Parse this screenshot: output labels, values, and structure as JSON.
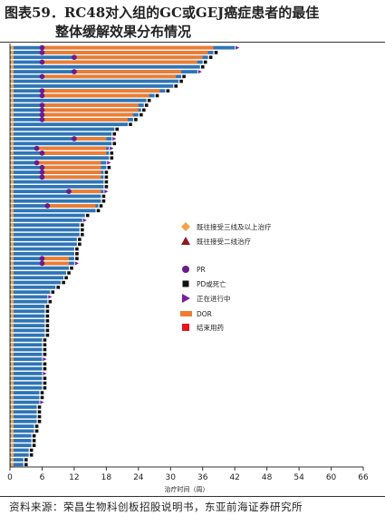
{
  "figure": {
    "title_line1": "图表59．RC48对入组的GC或GEJ癌症患者的最佳",
    "title_line2": "整体缓解效果分布情况",
    "source": "资料来源：荣昌生物科创板招股说明书，东亚前海证券研究所"
  },
  "colors": {
    "bar": "#2e75b6",
    "dor": "#ed7d31",
    "prior3": "#f4a24b",
    "prior2": "#8b1a1a",
    "pr": "#6a1b8c",
    "pd": "#111111",
    "ongoing": "#7b1fa2",
    "end": "#e8141e"
  },
  "chart_data": {
    "type": "bar",
    "orientation": "horizontal",
    "xlabel": "治疗时间（周）",
    "xlim": [
      0,
      66
    ],
    "xticks": [
      0,
      6,
      12,
      18,
      24,
      30,
      36,
      42,
      48,
      54,
      60,
      66
    ],
    "legend": [
      {
        "key": "prior3",
        "label": "既往接受三线及以上治疗"
      },
      {
        "key": "prior2",
        "label": "既往接受二线治疗"
      },
      {
        "key": "pr",
        "label": "PR"
      },
      {
        "key": "pd",
        "label": "PD或死亡"
      },
      {
        "key": "ongoing",
        "label": "正在进行中"
      },
      {
        "key": "dor",
        "label": "DOR"
      },
      {
        "key": "end",
        "label": "结束用药"
      }
    ],
    "patients": [
      {
        "duration": 42.0,
        "pr": 6,
        "dor": [
          6,
          38
        ],
        "end": "ongoing",
        "prior": 3
      },
      {
        "duration": 38.0,
        "pr": 6,
        "dor": [
          6,
          37
        ],
        "end": "pd",
        "prior": 3
      },
      {
        "duration": 37.0,
        "pr": 12,
        "dor": [
          12,
          36
        ],
        "end": "pd",
        "prior": 3
      },
      {
        "duration": 36.0,
        "pr": 6,
        "dor": [
          6,
          35
        ],
        "end": "pd",
        "prior": 3
      },
      {
        "duration": 35.5,
        "pr": null,
        "dor": null,
        "end": "pd",
        "prior": 3
      },
      {
        "duration": 35.0,
        "pr": 12,
        "dor": [
          12,
          32
        ],
        "end": "ongoing",
        "prior": 3
      },
      {
        "duration": 32.0,
        "pr": 6,
        "dor": [
          6,
          31
        ],
        "end": "pd",
        "prior": 3
      },
      {
        "duration": 31.5,
        "pr": null,
        "dor": null,
        "end": "pd",
        "prior": 3
      },
      {
        "duration": 30.5,
        "pr": null,
        "dor": null,
        "end": "pd",
        "prior": 3
      },
      {
        "duration": 29.0,
        "pr": 6,
        "dor": [
          6,
          28
        ],
        "end": "pd",
        "prior": 3
      },
      {
        "duration": 27.0,
        "pr": 6,
        "dor": [
          6,
          26
        ],
        "end": "pd",
        "prior": 3
      },
      {
        "duration": 25.5,
        "pr": null,
        "dor": null,
        "end": "pd",
        "prior": 3
      },
      {
        "duration": 25.0,
        "pr": 6,
        "dor": [
          6,
          24
        ],
        "end": "pd",
        "prior": 3
      },
      {
        "duration": 24.5,
        "pr": 6,
        "dor": [
          6,
          24
        ],
        "end": "pd",
        "prior": 3
      },
      {
        "duration": 24.0,
        "pr": 6,
        "dor": [
          6,
          23
        ],
        "end": "pd",
        "prior": 3
      },
      {
        "duration": 23.0,
        "pr": 6,
        "dor": [
          6,
          22
        ],
        "end": "pd",
        "prior": 3
      },
      {
        "duration": 22.0,
        "pr": null,
        "dor": null,
        "end": "pd",
        "prior": 3
      },
      {
        "duration": 19.5,
        "pr": null,
        "dor": null,
        "end": "pd",
        "prior": 3
      },
      {
        "duration": 19.0,
        "pr": null,
        "dor": null,
        "end": "pd",
        "prior": 3
      },
      {
        "duration": 19.0,
        "pr": 12,
        "dor": [
          12,
          18
        ],
        "end": "ongoing",
        "prior": 3
      },
      {
        "duration": 19.0,
        "pr": null,
        "dor": null,
        "end": "pd",
        "prior": 3
      },
      {
        "duration": 18.5,
        "pr": 5,
        "dor": [
          5,
          18
        ],
        "end": "ongoing",
        "prior": 3
      },
      {
        "duration": 18.5,
        "pr": 6,
        "dor": [
          6,
          18
        ],
        "end": "pd",
        "prior": 3
      },
      {
        "duration": 18.5,
        "pr": null,
        "dor": null,
        "end": "pd",
        "prior": 3
      },
      {
        "duration": 18.0,
        "pr": 5,
        "dor": [
          5,
          17
        ],
        "end": "ongoing",
        "prior": 3
      },
      {
        "duration": 18.0,
        "pr": 6,
        "dor": [
          6,
          17
        ],
        "end": "pd",
        "prior": 3
      },
      {
        "duration": 17.5,
        "pr": 6,
        "dor": [
          6,
          17
        ],
        "end": "pd",
        "prior": 3
      },
      {
        "duration": 17.5,
        "pr": 6,
        "dor": [
          6,
          17
        ],
        "end": "pd",
        "prior": 3
      },
      {
        "duration": 17.5,
        "pr": null,
        "dor": null,
        "end": "pd",
        "prior": 3
      },
      {
        "duration": 17.5,
        "pr": null,
        "dor": null,
        "end": "pd",
        "prior": 3
      },
      {
        "duration": 17.5,
        "pr": 11,
        "dor": [
          11,
          17
        ],
        "end": "ongoing",
        "prior": 3
      },
      {
        "duration": 17.0,
        "pr": null,
        "dor": null,
        "end": "pd",
        "prior": 3
      },
      {
        "duration": 17.0,
        "pr": null,
        "dor": null,
        "end": "pd",
        "prior": 3
      },
      {
        "duration": 16.5,
        "pr": 7,
        "dor": [
          7,
          16
        ],
        "end": "pd",
        "prior": 3
      },
      {
        "duration": 16.0,
        "pr": null,
        "dor": null,
        "end": "pd",
        "prior": 3
      },
      {
        "duration": 14.0,
        "pr": null,
        "dor": null,
        "end": "pd",
        "prior": 3
      },
      {
        "duration": 13.5,
        "pr": null,
        "dor": null,
        "end": "ongoing",
        "prior": 3
      },
      {
        "duration": 13.0,
        "pr": null,
        "dor": null,
        "end": "pd",
        "prior": 3
      },
      {
        "duration": 13.0,
        "pr": null,
        "dor": null,
        "end": "pd",
        "prior": 3
      },
      {
        "duration": 13.0,
        "pr": null,
        "dor": null,
        "end": "pd",
        "prior": 3
      },
      {
        "duration": 12.5,
        "pr": null,
        "dor": null,
        "end": "pd",
        "prior": 3
      },
      {
        "duration": 12.5,
        "pr": null,
        "dor": null,
        "end": "pd",
        "prior": 3
      },
      {
        "duration": 12.0,
        "pr": null,
        "dor": null,
        "end": "pd",
        "prior": 3
      },
      {
        "duration": 12.0,
        "pr": null,
        "dor": null,
        "end": "pd",
        "prior": 3
      },
      {
        "duration": 12.0,
        "pr": 6,
        "dor": [
          6,
          11
        ],
        "end": "pd",
        "prior": 3
      },
      {
        "duration": 12.0,
        "pr": 6,
        "dor": [
          6,
          11
        ],
        "end": "ongoing",
        "prior": 3
      },
      {
        "duration": 11.0,
        "pr": null,
        "dor": null,
        "end": "pd",
        "prior": 3
      },
      {
        "duration": 10.5,
        "pr": null,
        "dor": null,
        "end": "pd",
        "prior": 3
      },
      {
        "duration": 10.0,
        "pr": null,
        "dor": null,
        "end": "pd",
        "prior": 3
      },
      {
        "duration": 9.5,
        "pr": null,
        "dor": null,
        "end": "pd",
        "prior": 3
      },
      {
        "duration": 8.5,
        "pr": null,
        "dor": null,
        "end": "pd",
        "prior": 3
      },
      {
        "duration": 7.5,
        "pr": null,
        "dor": null,
        "end": "pd",
        "prior": 3
      },
      {
        "duration": 7.0,
        "pr": null,
        "dor": null,
        "end": "ongoing",
        "prior": 3
      },
      {
        "duration": 7.0,
        "pr": null,
        "dor": null,
        "end": "pd",
        "prior": 3
      },
      {
        "duration": 6.5,
        "pr": null,
        "dor": null,
        "end": "pd",
        "prior": 3
      },
      {
        "duration": 6.5,
        "pr": null,
        "dor": null,
        "end": "pd",
        "prior": 3
      },
      {
        "duration": 6.5,
        "pr": null,
        "dor": null,
        "end": "pd",
        "prior": 3
      },
      {
        "duration": 6.5,
        "pr": null,
        "dor": null,
        "end": "pd",
        "prior": 3
      },
      {
        "duration": 6.5,
        "pr": null,
        "dor": null,
        "end": "pd",
        "prior": 3
      },
      {
        "duration": 6.5,
        "pr": null,
        "dor": null,
        "end": "pd",
        "prior": 3
      },
      {
        "duration": 6.5,
        "pr": null,
        "dor": null,
        "end": "pd",
        "prior": 3
      },
      {
        "duration": 6.0,
        "pr": null,
        "dor": null,
        "end": "pd",
        "prior": 3
      },
      {
        "duration": 6.0,
        "pr": null,
        "dor": null,
        "end": "pd",
        "prior": 3
      },
      {
        "duration": 6.0,
        "pr": null,
        "dor": null,
        "end": "pd",
        "prior": 3
      },
      {
        "duration": 6.0,
        "pr": null,
        "dor": null,
        "end": "pd",
        "prior": 3
      },
      {
        "duration": 6.0,
        "pr": null,
        "dor": null,
        "end": "ongoing",
        "prior": 3
      },
      {
        "duration": 6.0,
        "pr": null,
        "dor": null,
        "end": "pd",
        "prior": 3
      },
      {
        "duration": 6.0,
        "pr": null,
        "dor": null,
        "end": "pd",
        "prior": 3
      },
      {
        "duration": 6.0,
        "pr": null,
        "dor": null,
        "end": "ongoing",
        "prior": 3
      },
      {
        "duration": 6.0,
        "pr": null,
        "dor": null,
        "end": "pd",
        "prior": 3
      },
      {
        "duration": 6.0,
        "pr": null,
        "dor": null,
        "end": "pd",
        "prior": 3
      },
      {
        "duration": 6.0,
        "pr": null,
        "dor": null,
        "end": "pd",
        "prior": 3
      },
      {
        "duration": 5.5,
        "pr": null,
        "dor": null,
        "end": "pd",
        "prior": 3
      },
      {
        "duration": 5.5,
        "pr": null,
        "dor": null,
        "end": "pd",
        "prior": 3
      },
      {
        "duration": 5.5,
        "pr": null,
        "dor": null,
        "end": "ongoing",
        "prior": 3
      },
      {
        "duration": 5.0,
        "pr": null,
        "dor": null,
        "end": "pd",
        "prior": 3
      },
      {
        "duration": 5.0,
        "pr": null,
        "dor": null,
        "end": "pd",
        "prior": 3
      },
      {
        "duration": 5.0,
        "pr": null,
        "dor": null,
        "end": "pd",
        "prior": 3
      },
      {
        "duration": 5.0,
        "pr": null,
        "dor": null,
        "end": "pd",
        "prior": 3
      },
      {
        "duration": 4.5,
        "pr": null,
        "dor": null,
        "end": "pd",
        "prior": 3
      },
      {
        "duration": 4.5,
        "pr": null,
        "dor": null,
        "end": "pd",
        "prior": 3
      },
      {
        "duration": 4.0,
        "pr": null,
        "dor": null,
        "end": "pd",
        "prior": 3
      },
      {
        "duration": 4.0,
        "pr": null,
        "dor": null,
        "end": "pd",
        "prior": 3
      },
      {
        "duration": 4.0,
        "pr": null,
        "dor": null,
        "end": "pd",
        "prior": 3
      },
      {
        "duration": 3.5,
        "pr": null,
        "dor": null,
        "end": "pd",
        "prior": 3
      },
      {
        "duration": 3.5,
        "pr": null,
        "dor": null,
        "end": "pd",
        "prior": 3
      },
      {
        "duration": 2.5,
        "pr": null,
        "dor": null,
        "end": "pd",
        "prior": 3
      },
      {
        "duration": 2.5,
        "pr": null,
        "dor": null,
        "end": "pd",
        "prior": 3
      }
    ]
  }
}
